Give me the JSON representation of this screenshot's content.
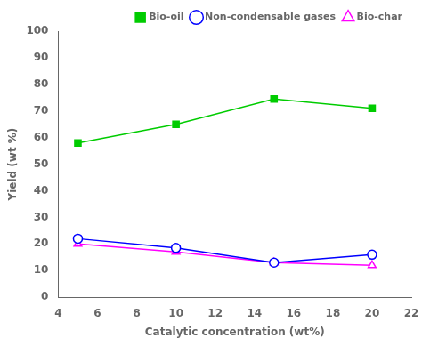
{
  "chart_data": {
    "type": "line",
    "x": [
      5,
      10,
      15,
      20
    ],
    "series": [
      {
        "name": "Bio-oil",
        "color": "#00CC00",
        "marker": "square",
        "values": [
          58,
          65,
          74.5,
          71
        ]
      },
      {
        "name": "Non-condensable gases",
        "color": "#0000FF",
        "marker": "circle",
        "values": [
          22,
          18.5,
          13,
          16
        ]
      },
      {
        "name": "Bio-char",
        "color": "#FF00FF",
        "marker": "triangle",
        "values": [
          20,
          17,
          13,
          12
        ]
      }
    ],
    "xlabel": "Catalytic concentration (wt%)",
    "ylabel": "Yield (wt %)",
    "xlim": [
      4,
      22
    ],
    "ylim": [
      0,
      100
    ],
    "xticks": [
      4,
      6,
      8,
      10,
      12,
      14,
      16,
      18,
      20,
      22
    ],
    "yticks": [
      0,
      10,
      20,
      30,
      40,
      50,
      60,
      70,
      80,
      90,
      100
    ],
    "grid": false,
    "legend": "upper right"
  }
}
